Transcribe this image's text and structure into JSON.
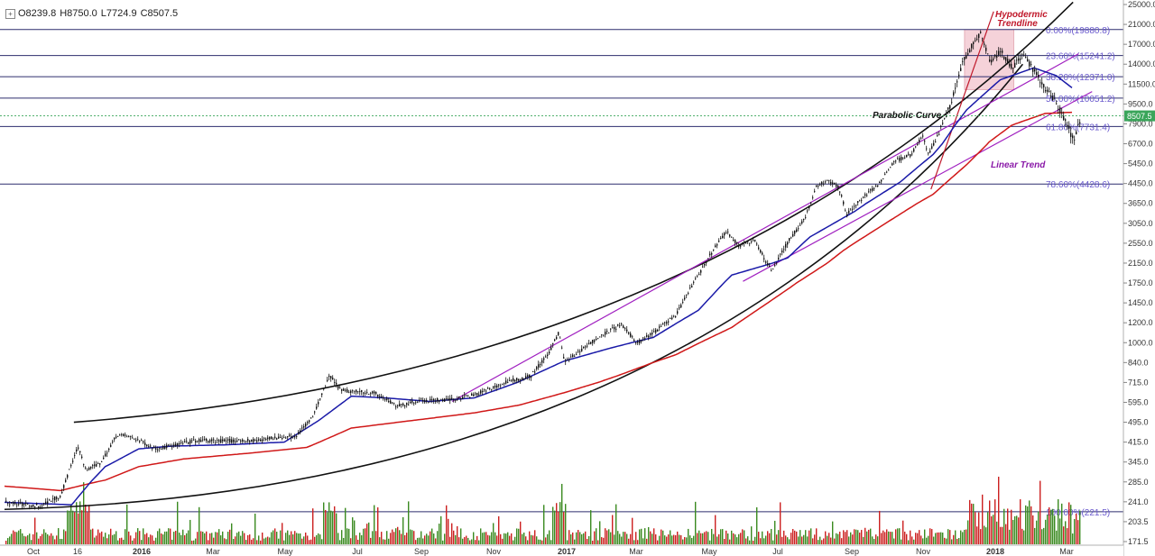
{
  "ohlc": {
    "open": "O8239.8",
    "high": "H8750.0",
    "low": "L7724.9",
    "close": "C8507.5"
  },
  "price_badge": "8507.5",
  "annotations": {
    "hypodermic": [
      "Hypodermic",
      "Trendline"
    ],
    "parabolic": "Parabolic Curve",
    "linear": "Linear Trend"
  },
  "colors": {
    "candle": "#111111",
    "ma_blue": "#1a1aa8",
    "ma_red": "#d01818",
    "fib": "#2d2d6e",
    "trend_purple": "#a020c0",
    "vol_up": "#3a8a20",
    "vol_down": "#cc2020",
    "zone": "#f3c7cf",
    "hypodermic_text": "#c0182a",
    "linear_text": "#8a1aa8",
    "badge": "#3aa55a"
  },
  "chart_data": {
    "type": "candlestick",
    "y_scale": "log",
    "y_ticks": [
      "25000.0",
      "21000.0",
      "17000.0",
      "14000.0",
      "11500.0",
      "9500.0",
      "7900.0",
      "6700.0",
      "5450.0",
      "4450.0",
      "3650.0",
      "3050.0",
      "2550.0",
      "2150.0",
      "1750.0",
      "1450.0",
      "1200.0",
      "1000.0",
      "840.0",
      "715.0",
      "595.0",
      "495.0",
      "415.0",
      "345.0",
      "285.0",
      "241.0",
      "203.5",
      "171.5"
    ],
    "x_ticks": [
      "Oct",
      "16",
      "2016",
      "Mar",
      "May",
      "Jul",
      "Sep",
      "Nov",
      "2017",
      "Mar",
      "May",
      "Jul",
      "Sep",
      "Nov",
      "2018",
      "Mar"
    ],
    "fib_levels": [
      {
        "label": "0.00%(19880.8)",
        "value": 19880.8
      },
      {
        "label": "23.60%(15241.2)",
        "value": 15241.2
      },
      {
        "label": "38.20%(12371.0)",
        "value": 12371.0
      },
      {
        "label": "50.00%(10051.2)",
        "value": 10051.2
      },
      {
        "label": "61.80%(7731.4)",
        "value": 7731.4
      },
      {
        "label": "78.60%(4428.6)",
        "value": 4428.6
      },
      {
        "label": "100.00%(221.5)",
        "value": 221.5
      }
    ],
    "price_path": [
      {
        "t": 0,
        "p": 240
      },
      {
        "t": 0.03,
        "p": 232
      },
      {
        "t": 0.05,
        "p": 255
      },
      {
        "t": 0.065,
        "p": 400
      },
      {
        "t": 0.072,
        "p": 320
      },
      {
        "t": 0.085,
        "p": 340
      },
      {
        "t": 0.1,
        "p": 445
      },
      {
        "t": 0.115,
        "p": 430
      },
      {
        "t": 0.135,
        "p": 390
      },
      {
        "t": 0.17,
        "p": 420
      },
      {
        "t": 0.22,
        "p": 420
      },
      {
        "t": 0.26,
        "p": 440
      },
      {
        "t": 0.275,
        "p": 520
      },
      {
        "t": 0.29,
        "p": 760
      },
      {
        "t": 0.3,
        "p": 665
      },
      {
        "t": 0.33,
        "p": 650
      },
      {
        "t": 0.35,
        "p": 575
      },
      {
        "t": 0.37,
        "p": 605
      },
      {
        "t": 0.4,
        "p": 610
      },
      {
        "t": 0.42,
        "p": 640
      },
      {
        "t": 0.45,
        "p": 720
      },
      {
        "t": 0.47,
        "p": 755
      },
      {
        "t": 0.485,
        "p": 900
      },
      {
        "t": 0.495,
        "p": 1100
      },
      {
        "t": 0.5,
        "p": 840
      },
      {
        "t": 0.53,
        "p": 1050
      },
      {
        "t": 0.55,
        "p": 1180
      },
      {
        "t": 0.565,
        "p": 1000
      },
      {
        "t": 0.58,
        "p": 1100
      },
      {
        "t": 0.6,
        "p": 1300
      },
      {
        "t": 0.615,
        "p": 1750
      },
      {
        "t": 0.63,
        "p": 2300
      },
      {
        "t": 0.645,
        "p": 2850
      },
      {
        "t": 0.655,
        "p": 2500
      },
      {
        "t": 0.67,
        "p": 2600
      },
      {
        "t": 0.685,
        "p": 2000
      },
      {
        "t": 0.7,
        "p": 2600
      },
      {
        "t": 0.715,
        "p": 3200
      },
      {
        "t": 0.725,
        "p": 4300
      },
      {
        "t": 0.735,
        "p": 4600
      },
      {
        "t": 0.745,
        "p": 4300
      },
      {
        "t": 0.752,
        "p": 3300
      },
      {
        "t": 0.765,
        "p": 3800
      },
      {
        "t": 0.78,
        "p": 4400
      },
      {
        "t": 0.795,
        "p": 5600
      },
      {
        "t": 0.81,
        "p": 6000
      },
      {
        "t": 0.82,
        "p": 7200
      },
      {
        "t": 0.825,
        "p": 6000
      },
      {
        "t": 0.835,
        "p": 7400
      },
      {
        "t": 0.845,
        "p": 9500
      },
      {
        "t": 0.855,
        "p": 14000
      },
      {
        "t": 0.865,
        "p": 17000
      },
      {
        "t": 0.872,
        "p": 19400
      },
      {
        "t": 0.88,
        "p": 14500
      },
      {
        "t": 0.89,
        "p": 15800
      },
      {
        "t": 0.9,
        "p": 13500
      },
      {
        "t": 0.91,
        "p": 15400
      },
      {
        "t": 0.92,
        "p": 13000
      },
      {
        "t": 0.93,
        "p": 11000
      },
      {
        "t": 0.94,
        "p": 9500
      },
      {
        "t": 0.95,
        "p": 7800
      },
      {
        "t": 0.955,
        "p": 6800
      },
      {
        "t": 0.962,
        "p": 8500
      }
    ],
    "ma_blue_path": [
      {
        "t": 0,
        "p": 240
      },
      {
        "t": 0.06,
        "p": 235
      },
      {
        "t": 0.09,
        "p": 330
      },
      {
        "t": 0.12,
        "p": 390
      },
      {
        "t": 0.15,
        "p": 400
      },
      {
        "t": 0.2,
        "p": 405
      },
      {
        "t": 0.25,
        "p": 415
      },
      {
        "t": 0.28,
        "p": 500
      },
      {
        "t": 0.31,
        "p": 630
      },
      {
        "t": 0.34,
        "p": 620
      },
      {
        "t": 0.38,
        "p": 600
      },
      {
        "t": 0.42,
        "p": 620
      },
      {
        "t": 0.46,
        "p": 720
      },
      {
        "t": 0.5,
        "p": 850
      },
      {
        "t": 0.54,
        "p": 950
      },
      {
        "t": 0.58,
        "p": 1050
      },
      {
        "t": 0.62,
        "p": 1350
      },
      {
        "t": 0.65,
        "p": 1900
      },
      {
        "t": 0.7,
        "p": 2250
      },
      {
        "t": 0.72,
        "p": 2700
      },
      {
        "t": 0.76,
        "p": 3400
      },
      {
        "t": 0.8,
        "p": 4500
      },
      {
        "t": 0.83,
        "p": 6000
      },
      {
        "t": 0.86,
        "p": 9000
      },
      {
        "t": 0.89,
        "p": 12000
      },
      {
        "t": 0.92,
        "p": 13500
      },
      {
        "t": 0.94,
        "p": 12500
      },
      {
        "t": 0.955,
        "p": 11000
      }
    ],
    "ma_red_path": [
      {
        "t": 0,
        "p": 275
      },
      {
        "t": 0.05,
        "p": 265
      },
      {
        "t": 0.09,
        "p": 290
      },
      {
        "t": 0.12,
        "p": 330
      },
      {
        "t": 0.16,
        "p": 355
      },
      {
        "t": 0.22,
        "p": 375
      },
      {
        "t": 0.27,
        "p": 395
      },
      {
        "t": 0.31,
        "p": 470
      },
      {
        "t": 0.36,
        "p": 500
      },
      {
        "t": 0.42,
        "p": 540
      },
      {
        "t": 0.46,
        "p": 580
      },
      {
        "t": 0.5,
        "p": 650
      },
      {
        "t": 0.55,
        "p": 760
      },
      {
        "t": 0.6,
        "p": 900
      },
      {
        "t": 0.65,
        "p": 1150
      },
      {
        "t": 0.7,
        "p": 1650
      },
      {
        "t": 0.75,
        "p": 2400
      },
      {
        "t": 0.79,
        "p": 3100
      },
      {
        "t": 0.83,
        "p": 4000
      },
      {
        "t": 0.86,
        "p": 5400
      },
      {
        "t": 0.88,
        "p": 6800
      },
      {
        "t": 0.9,
        "p": 7800
      },
      {
        "t": 0.93,
        "p": 8700
      },
      {
        "t": 0.955,
        "p": 8800
      }
    ]
  }
}
